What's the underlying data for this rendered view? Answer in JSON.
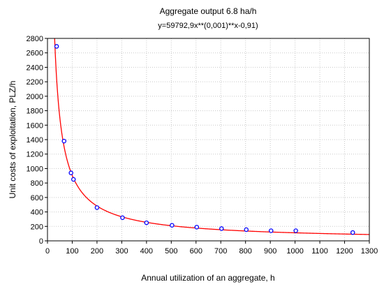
{
  "chart_data": {
    "type": "scatter",
    "title": "Aggregate output 6.8 ha/h",
    "subtitle": "y=59792,9x**(0,001)**x-0,91)",
    "xlabel": "Annual utilization of an aggregate, h",
    "ylabel": "Unit costs of exploitation, PLZ/h",
    "xlim": [
      0,
      1300
    ],
    "ylim": [
      0,
      2800
    ],
    "x_ticks": [
      "0",
      "100",
      "200",
      "300",
      "400",
      "500",
      "600",
      "700",
      "800",
      "900",
      "1000",
      "1100",
      "1200",
      "1300"
    ],
    "y_ticks": [
      "0",
      "200",
      "400",
      "600",
      "800",
      "1000",
      "1200",
      "1400",
      "1600",
      "1800",
      "2000",
      "2200",
      "2400",
      "2600",
      "2800"
    ],
    "grid": true,
    "points": [
      {
        "x": 37,
        "y": 2690
      },
      {
        "x": 67,
        "y": 1380
      },
      {
        "x": 95,
        "y": 940
      },
      {
        "x": 105,
        "y": 850
      },
      {
        "x": 200,
        "y": 460
      },
      {
        "x": 303,
        "y": 320
      },
      {
        "x": 400,
        "y": 250
      },
      {
        "x": 503,
        "y": 215
      },
      {
        "x": 603,
        "y": 190
      },
      {
        "x": 703,
        "y": 170
      },
      {
        "x": 803,
        "y": 155
      },
      {
        "x": 903,
        "y": 140
      },
      {
        "x": 1003,
        "y": 140
      },
      {
        "x": 1233,
        "y": 115
      }
    ],
    "fit": {
      "a": 59792.9,
      "b": -0.91
    },
    "colors": {
      "points": "#0000ff",
      "fit_line": "#ff0000",
      "grid": "#c8c8c8",
      "frame": "#000000"
    }
  }
}
